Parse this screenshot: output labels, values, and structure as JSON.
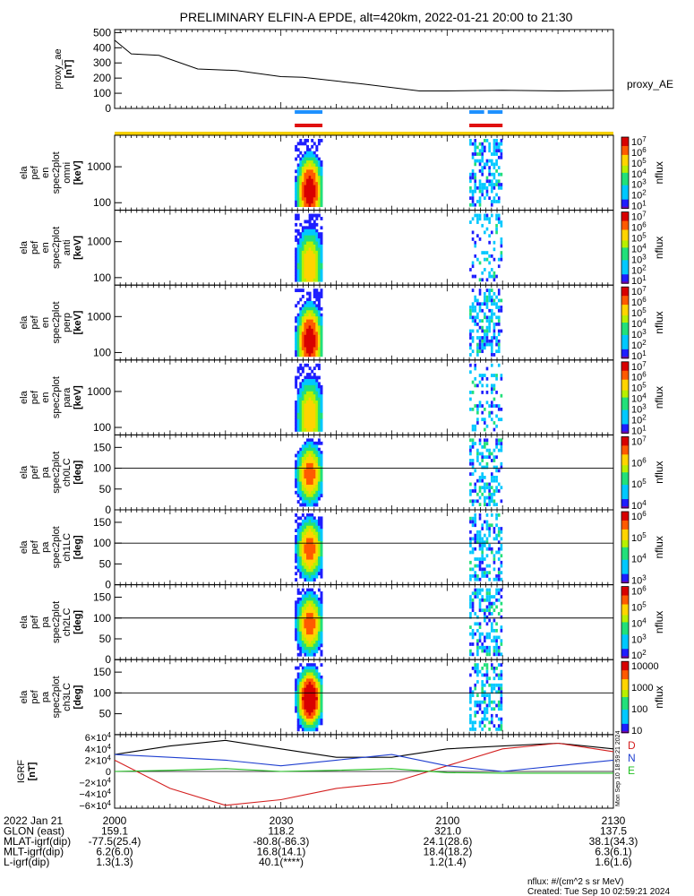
{
  "title": "PRELIMINARY ELFIN-A EPDE, alt=420km, 2022-01-21 20:00 to 21:30",
  "ae_panel": {
    "ylabel": [
      "proxy_ae",
      "[nT]"
    ],
    "yticks": [
      "500",
      "400",
      "300",
      "200",
      "100",
      "0"
    ],
    "legend": "proxy_AE"
  },
  "spec_panels": [
    {
      "ylabel": [
        "ela",
        "pef",
        "en",
        "spec2plot",
        "omni",
        "[keV]"
      ],
      "yticks": [
        "1000",
        "100"
      ],
      "cbar_label": "nflux",
      "cbar_ticks": [
        "10^7",
        "10^6",
        "10^5",
        "10^4",
        "10^3",
        "10^2",
        "10^1"
      ]
    },
    {
      "ylabel": [
        "ela",
        "pef",
        "en",
        "spec2plot",
        "anti",
        "[keV]"
      ],
      "yticks": [
        "1000",
        "100"
      ],
      "cbar_label": "nflux",
      "cbar_ticks": [
        "10^7",
        "10^6",
        "10^5",
        "10^4",
        "10^3",
        "10^2",
        "10^1"
      ]
    },
    {
      "ylabel": [
        "ela",
        "pef",
        "en",
        "spec2plot",
        "perp",
        "[keV]"
      ],
      "yticks": [
        "1000",
        "100"
      ],
      "cbar_label": "nflux",
      "cbar_ticks": [
        "10^7",
        "10^6",
        "10^5",
        "10^4",
        "10^3",
        "10^2",
        "10^1"
      ]
    },
    {
      "ylabel": [
        "ela",
        "pef",
        "en",
        "spec2plot",
        "para",
        "[keV]"
      ],
      "yticks": [
        "1000",
        "100"
      ],
      "cbar_label": "nflux",
      "cbar_ticks": [
        "10^7",
        "10^6",
        "10^5",
        "10^4",
        "10^3",
        "10^2",
        "10^1"
      ]
    },
    {
      "ylabel": [
        "ela",
        "pef",
        "pa",
        "spec2plot",
        "ch0LC",
        "[deg]"
      ],
      "yticks": [
        "150",
        "100",
        "50",
        "0"
      ],
      "cbar_label": "nflux",
      "cbar_ticks": [
        "10^7",
        "10^6",
        "10^5",
        "10^4"
      ]
    },
    {
      "ylabel": [
        "ela",
        "pef",
        "pa",
        "spec2plot",
        "ch1LC",
        "[deg]"
      ],
      "yticks": [
        "150",
        "100",
        "50",
        "0"
      ],
      "cbar_label": "nflux",
      "cbar_ticks": [
        "10^6",
        "10^5",
        "10^4",
        "10^3"
      ]
    },
    {
      "ylabel": [
        "ela",
        "pef",
        "pa",
        "spec2plot",
        "ch2LC",
        "[deg]"
      ],
      "yticks": [
        "150",
        "100",
        "50",
        "0"
      ],
      "cbar_label": "nflux",
      "cbar_ticks": [
        "10^6",
        "10^5",
        "10^4",
        "10^3",
        "10^2"
      ]
    },
    {
      "ylabel": [
        "ela",
        "pef",
        "pa",
        "spec2plot",
        "ch3LC",
        "[deg]"
      ],
      "yticks": [
        "150",
        "100",
        "50"
      ],
      "cbar_label": "nflux",
      "cbar_ticks": [
        "10000",
        "1000",
        "100",
        "10"
      ]
    }
  ],
  "igrf_panel": {
    "ylabel": [
      "IGRF",
      "[nT]"
    ],
    "yticks": [
      "6×10^4",
      "4×10^4",
      "2×10^4",
      "0",
      "−2×10^4",
      "−4×10^4",
      "−6×10^4"
    ],
    "legend": [
      {
        "name": "D",
        "color": "#d42020"
      },
      {
        "name": "N",
        "color": "#1f3fd0"
      },
      {
        "name": "E",
        "color": "#22c022"
      }
    ],
    "side_text": "Mon Sep 10 18:59:21 2024"
  },
  "x_axis": {
    "tick_labels": [
      "2000",
      "2030",
      "2100",
      "2130"
    ],
    "rows": [
      {
        "label": "2022 Jan 21",
        "values": [
          "2000",
          "2030",
          "2100",
          "2130"
        ]
      },
      {
        "label": "GLON (east)",
        "values": [
          "159.1",
          "118.2",
          "321.0",
          "137.5"
        ]
      },
      {
        "label": "MLAT-igrf(dip)",
        "values": [
          "-77.5(25.4)",
          "-80.8(-86.3)",
          "24.1(28.6)",
          "38.1(34.3)"
        ]
      },
      {
        "label": "MLT-igrf(dip)",
        "values": [
          "6.2(6.0)",
          "16.8(14.1)",
          "18.4(18.2)",
          "6.3(6.1)"
        ]
      },
      {
        "label": "L-igrf(dip)",
        "values": [
          "1.3(1.3)",
          "40.1(****)",
          "1.2(1.4)",
          "1.6(1.6)"
        ]
      }
    ]
  },
  "footer": {
    "units": "nflux: #/(cm^2 s sr MeV)",
    "created": "Created: Tue Sep 10 02:59:21 2024"
  },
  "colors": {
    "status_yellow": "#f5d000",
    "flag_blue": "#1e90ff",
    "flag_red": "#e01010",
    "ae_line": "#000000"
  },
  "chart_data": {
    "type": "line+heatmap",
    "time_range": [
      "2022-01-21 20:00",
      "2022-01-21 21:30"
    ],
    "ae": {
      "x_min": [
        0,
        3,
        8,
        15,
        22,
        30,
        34,
        45,
        55,
        60,
        70,
        80,
        90
      ],
      "y_nT": [
        450,
        360,
        350,
        260,
        250,
        210,
        205,
        160,
        115,
        115,
        120,
        115,
        120
      ],
      "ylim": [
        0,
        520
      ]
    },
    "science_zones_min": [
      [
        32.5,
        37.5
      ],
      [
        64,
        70
      ]
    ],
    "igrf": {
      "x_min": [
        0,
        10,
        20,
        30,
        40,
        50,
        60,
        70,
        80,
        90
      ],
      "D": [
        20000,
        -30000,
        -60000,
        -50000,
        -30000,
        -20000,
        10000,
        40000,
        50000,
        35000
      ],
      "N": [
        30000,
        25000,
        20000,
        10000,
        20000,
        30000,
        10000,
        0,
        10000,
        20000
      ],
      "E": [
        0,
        2000,
        5000,
        0,
        2000,
        5000,
        -2000,
        -3000,
        -3000,
        -3000
      ],
      "total": [
        30000,
        45000,
        55000,
        40000,
        25000,
        25000,
        40000,
        45000,
        50000,
        40000
      ],
      "ylim": [
        -65000,
        65000
      ]
    }
  }
}
